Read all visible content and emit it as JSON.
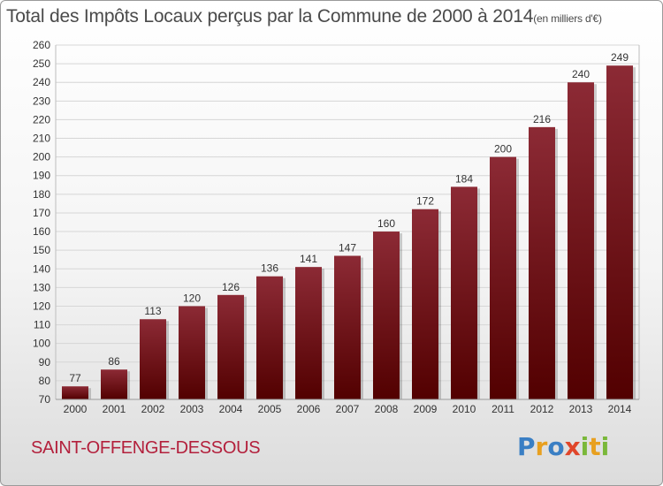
{
  "title": "Total des Impôts Locaux perçus par la Commune de 2000 à 2014",
  "title_unit": "(en milliers d'€)",
  "commune": "SAINT-OFFENGE-DESSOUS",
  "logo": {
    "text": "Proxiti",
    "letters": [
      {
        "ch": "P",
        "color": "#3a7fc4"
      },
      {
        "ch": "r",
        "color": "#e8a020"
      },
      {
        "ch": "o",
        "color": "#3a7fc4"
      },
      {
        "ch": "x",
        "color": "#e0462a"
      },
      {
        "ch": "i",
        "color": "#7ab83a"
      },
      {
        "ch": "t",
        "color": "#e8a020"
      },
      {
        "ch": "i",
        "color": "#7ab83a"
      }
    ]
  },
  "colors": {
    "bar_top": "#8c2a35",
    "bar_bottom": "#520000",
    "grid": "#d6d6d6",
    "axis_text": "#333333"
  },
  "chart_data": {
    "type": "bar",
    "title": "Total des Impôts Locaux perçus par la Commune de 2000 à 2014",
    "xlabel": "",
    "ylabel": "",
    "categories": [
      "2000",
      "2001",
      "2002",
      "2003",
      "2004",
      "2005",
      "2006",
      "2007",
      "2008",
      "2009",
      "2010",
      "2011",
      "2012",
      "2013",
      "2014"
    ],
    "values": [
      77,
      86,
      113,
      120,
      126,
      136,
      141,
      147,
      160,
      172,
      184,
      200,
      216,
      240,
      249
    ],
    "data_labels": [
      "77",
      "86",
      "113",
      "120",
      "126",
      "136",
      "141",
      "147",
      "160",
      "172",
      "184",
      "200",
      "216",
      "240",
      "249"
    ],
    "ylim": [
      70,
      260
    ],
    "yticks": [
      70,
      80,
      90,
      100,
      110,
      120,
      130,
      140,
      150,
      160,
      170,
      180,
      190,
      200,
      210,
      220,
      230,
      240,
      250,
      260
    ],
    "ytick_labels": [
      "70",
      "80",
      "90",
      "100",
      "110",
      "120",
      "130",
      "140",
      "150",
      "160",
      "170",
      "180",
      "190",
      "200",
      "210",
      "220",
      "230",
      "240",
      "250",
      "260"
    ],
    "grid": true,
    "legend": "none"
  }
}
